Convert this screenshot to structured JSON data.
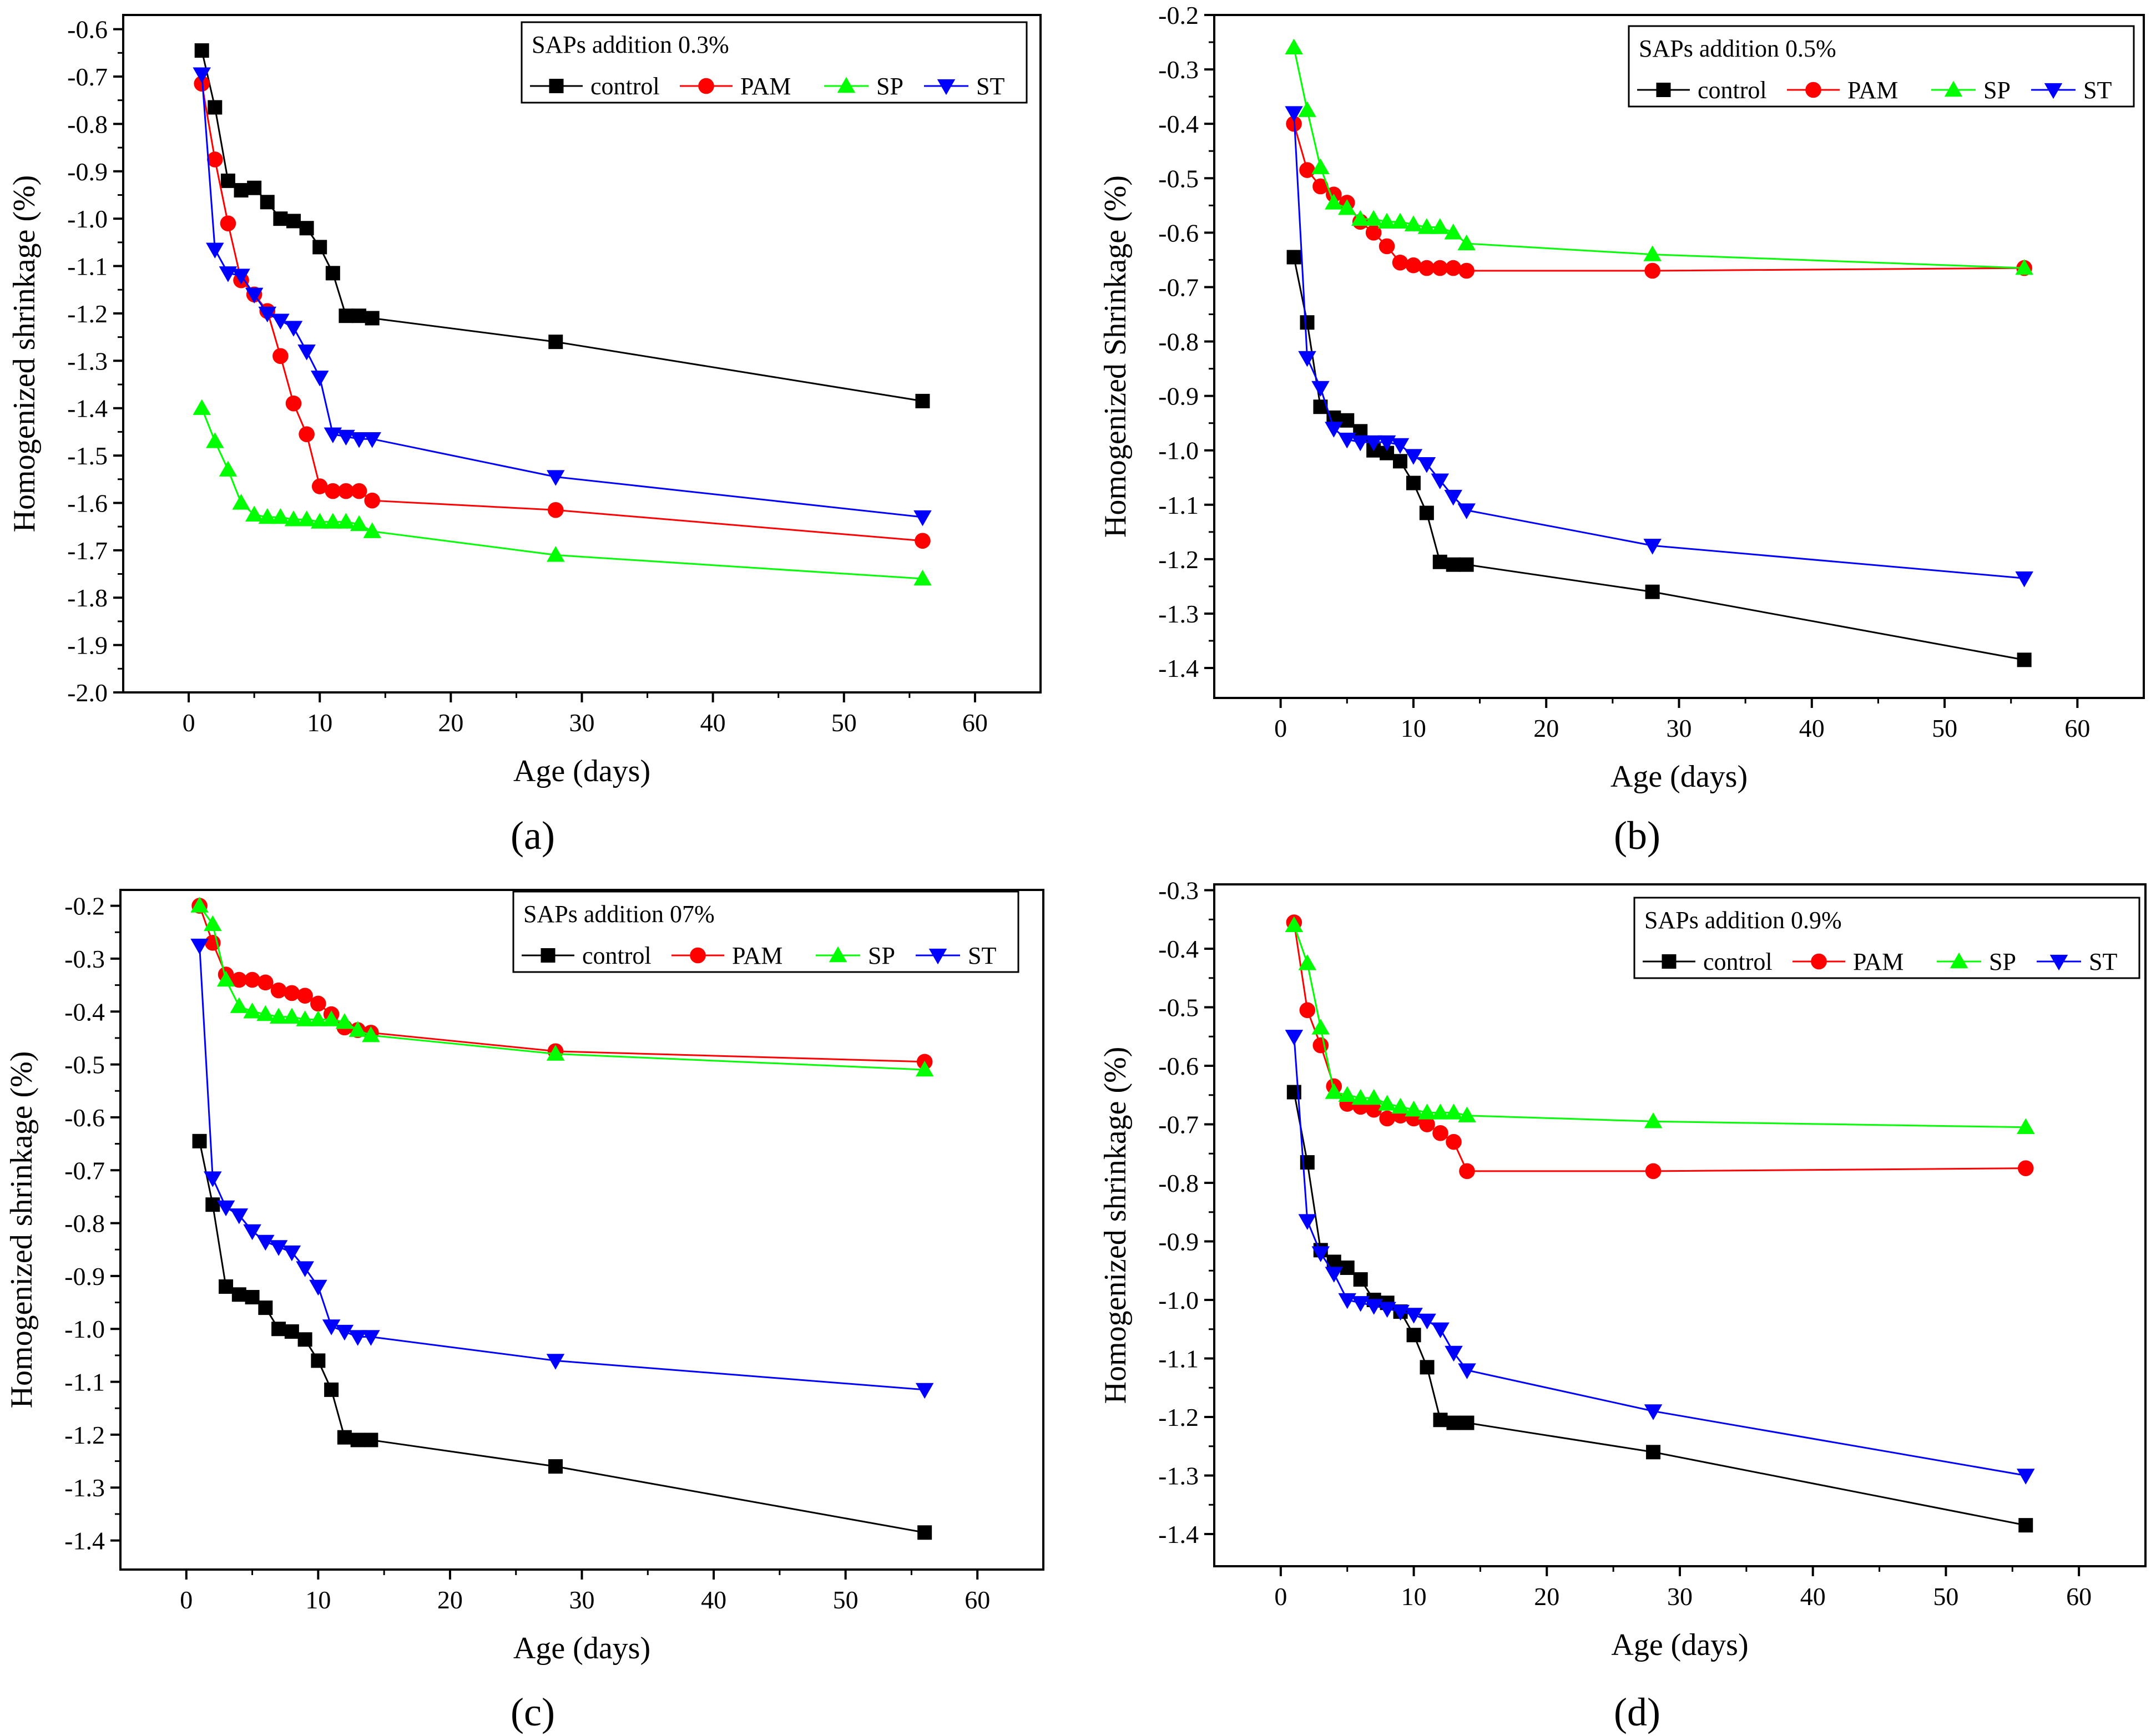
{
  "figure": {
    "series_style": {
      "control": {
        "color": "#000000",
        "marker": "square"
      },
      "PAM": {
        "color": "#ff0000",
        "marker": "circle"
      },
      "SP": {
        "color": "#00ff00",
        "marker": "triangle-up"
      },
      "ST": {
        "color": "#0000ff",
        "marker": "triangle-down"
      }
    }
  },
  "chart_data": [
    {
      "panel": "a",
      "panel_label": "(a)",
      "type": "line",
      "title": "",
      "xlabel": "Age (days)",
      "ylabel": "Homogenized shrinkage (%)",
      "legend_title": "SAPs addition 0.3%",
      "legend_position": "top-right",
      "xlim": [
        -5,
        65
      ],
      "ylim": [
        -2.0,
        -0.57
      ],
      "xticks": [
        0,
        10,
        20,
        30,
        40,
        50,
        60
      ],
      "xtick_labels": [
        "0",
        "10",
        "20",
        "30",
        "40",
        "50",
        "60"
      ],
      "yticks": [
        -2.0,
        -1.9,
        -1.8,
        -1.7,
        -1.6,
        -1.5,
        -1.4,
        -1.3,
        -1.2,
        -1.1,
        -1.0,
        -0.9,
        -0.8,
        -0.7,
        -0.6
      ],
      "ytick_labels": [
        "-2.0",
        "-1.9",
        "-1.8",
        "-1.7",
        "-1.6",
        "-1.5",
        "-1.4",
        "-1.3",
        "-1.2",
        "-1.1",
        "-1.0",
        "-0.9",
        "-0.8",
        "-0.7",
        "-0.6"
      ],
      "series": [
        {
          "name": "control",
          "x": [
            1,
            2,
            3,
            4,
            5,
            6,
            7,
            8,
            9,
            10,
            11,
            12,
            13,
            14,
            28,
            56
          ],
          "y": [
            -0.645,
            -0.765,
            -0.92,
            -0.94,
            -0.935,
            -0.965,
            -1.0,
            -1.005,
            -1.02,
            -1.06,
            -1.115,
            -1.205,
            -1.205,
            -1.21,
            -1.26,
            -1.385
          ]
        },
        {
          "name": "PAM",
          "x": [
            1,
            2,
            3,
            4,
            5,
            6,
            7,
            8,
            9,
            10,
            11,
            12,
            13,
            14,
            28,
            56
          ],
          "y": [
            -0.715,
            -0.875,
            -1.01,
            -1.13,
            -1.16,
            -1.195,
            -1.29,
            -1.39,
            -1.455,
            -1.565,
            -1.575,
            -1.575,
            -1.575,
            -1.595,
            -1.615,
            -1.68
          ]
        },
        {
          "name": "SP",
          "x": [
            1,
            2,
            3,
            4,
            5,
            6,
            7,
            8,
            9,
            10,
            11,
            12,
            13,
            14,
            28,
            56
          ],
          "y": [
            -1.4,
            -1.47,
            -1.53,
            -1.6,
            -1.625,
            -1.63,
            -1.63,
            -1.635,
            -1.635,
            -1.64,
            -1.64,
            -1.64,
            -1.645,
            -1.66,
            -1.71,
            -1.76
          ]
        },
        {
          "name": "ST",
          "x": [
            1,
            2,
            3,
            4,
            5,
            6,
            7,
            8,
            9,
            10,
            11,
            12,
            13,
            14,
            28,
            56
          ],
          "y": [
            -0.695,
            -1.065,
            -1.115,
            -1.12,
            -1.16,
            -1.2,
            -1.215,
            -1.23,
            -1.28,
            -1.335,
            -1.455,
            -1.46,
            -1.465,
            -1.465,
            -1.545,
            -1.63
          ]
        }
      ]
    },
    {
      "panel": "b",
      "panel_label": "(b)",
      "type": "line",
      "title": "",
      "xlabel": "Age (days)",
      "ylabel": "Homogenized Shrinkage (%)",
      "legend_title": "SAPs addition 0.5%",
      "legend_position": "top-right",
      "xlim": [
        -5,
        65
      ],
      "ylim": [
        -1.455,
        -0.2
      ],
      "xticks": [
        0,
        10,
        20,
        30,
        40,
        50,
        60
      ],
      "xtick_labels": [
        "0",
        "10",
        "20",
        "30",
        "40",
        "50",
        "60"
      ],
      "yticks": [
        -1.4,
        -1.3,
        -1.2,
        -1.1,
        -1.0,
        -0.9,
        -0.8,
        -0.7,
        -0.6,
        -0.5,
        -0.4,
        -0.3,
        -0.2
      ],
      "ytick_labels": [
        "-1.4",
        "-1.3",
        "-1.2",
        "-1.1",
        "-1.0",
        "-0.9",
        "-0.8",
        "-0.7",
        "-0.6",
        "-0.5",
        "-0.4",
        "-0.3",
        "-0.2"
      ],
      "series": [
        {
          "name": "control",
          "x": [
            1,
            2,
            3,
            4,
            5,
            6,
            7,
            8,
            9,
            10,
            11,
            12,
            13,
            14,
            28,
            56
          ],
          "y": [
            -0.645,
            -0.765,
            -0.92,
            -0.94,
            -0.945,
            -0.965,
            -1.0,
            -1.005,
            -1.02,
            -1.06,
            -1.115,
            -1.205,
            -1.21,
            -1.21,
            -1.26,
            -1.385
          ]
        },
        {
          "name": "PAM",
          "x": [
            1,
            2,
            3,
            4,
            5,
            6,
            7,
            8,
            9,
            10,
            11,
            12,
            13,
            14,
            28,
            56
          ],
          "y": [
            -0.4,
            -0.485,
            -0.515,
            -0.53,
            -0.545,
            -0.58,
            -0.6,
            -0.625,
            -0.655,
            -0.66,
            -0.665,
            -0.665,
            -0.665,
            -0.67,
            -0.67,
            -0.665
          ]
        },
        {
          "name": "SP",
          "x": [
            1,
            2,
            3,
            4,
            5,
            6,
            7,
            8,
            9,
            10,
            11,
            12,
            13,
            14,
            28,
            56
          ],
          "y": [
            -0.26,
            -0.375,
            -0.48,
            -0.545,
            -0.555,
            -0.575,
            -0.575,
            -0.58,
            -0.58,
            -0.585,
            -0.59,
            -0.59,
            -0.6,
            -0.62,
            -0.64,
            -0.665
          ]
        },
        {
          "name": "ST",
          "x": [
            1,
            2,
            3,
            4,
            5,
            6,
            7,
            8,
            9,
            10,
            11,
            12,
            13,
            14,
            28,
            56
          ],
          "y": [
            -0.38,
            -0.83,
            -0.885,
            -0.96,
            -0.98,
            -0.985,
            -0.985,
            -0.985,
            -0.99,
            -1.01,
            -1.025,
            -1.055,
            -1.085,
            -1.11,
            -1.175,
            -1.235
          ]
        }
      ]
    },
    {
      "panel": "c",
      "panel_label": "(c)",
      "type": "line",
      "title": "",
      "xlabel": "Age (days)",
      "ylabel": "Homogenized shrinkage (%)",
      "legend_title": "SAPs addition 07%",
      "legend_position": "top-right",
      "xlim": [
        -5,
        65
      ],
      "ylim": [
        -1.455,
        -0.17
      ],
      "xticks": [
        0,
        10,
        20,
        30,
        40,
        50,
        60
      ],
      "xtick_labels": [
        "0",
        "10",
        "20",
        "30",
        "40",
        "50",
        "60"
      ],
      "yticks": [
        -1.4,
        -1.3,
        -1.2,
        -1.1,
        -1.0,
        -0.9,
        -0.8,
        -0.7,
        -0.6,
        -0.5,
        -0.4,
        -0.3,
        -0.2
      ],
      "ytick_labels": [
        "-1.4",
        "-1.3",
        "-1.2",
        "-1.1",
        "-1.0",
        "-0.9",
        "-0.8",
        "-0.7",
        "-0.6",
        "-0.5",
        "-0.4",
        "-0.3",
        "-0.2"
      ],
      "series": [
        {
          "name": "control",
          "x": [
            1,
            2,
            3,
            4,
            5,
            6,
            7,
            8,
            9,
            10,
            11,
            12,
            13,
            14,
            28,
            56
          ],
          "y": [
            -0.645,
            -0.765,
            -0.92,
            -0.935,
            -0.94,
            -0.96,
            -1.0,
            -1.005,
            -1.02,
            -1.06,
            -1.115,
            -1.205,
            -1.21,
            -1.21,
            -1.26,
            -1.385
          ]
        },
        {
          "name": "PAM",
          "x": [
            1,
            2,
            3,
            4,
            5,
            6,
            7,
            8,
            9,
            10,
            11,
            12,
            13,
            14,
            28,
            56
          ],
          "y": [
            -0.2,
            -0.27,
            -0.33,
            -0.34,
            -0.34,
            -0.345,
            -0.36,
            -0.365,
            -0.37,
            -0.385,
            -0.405,
            -0.43,
            -0.435,
            -0.44,
            -0.475,
            -0.495
          ]
        },
        {
          "name": "SP",
          "x": [
            1,
            2,
            3,
            4,
            5,
            6,
            7,
            8,
            9,
            10,
            11,
            12,
            13,
            14,
            28,
            56
          ],
          "y": [
            -0.2,
            -0.235,
            -0.34,
            -0.39,
            -0.4,
            -0.405,
            -0.41,
            -0.41,
            -0.415,
            -0.415,
            -0.415,
            -0.42,
            -0.435,
            -0.445,
            -0.48,
            -0.51
          ]
        },
        {
          "name": "ST",
          "x": [
            1,
            2,
            3,
            4,
            5,
            6,
            7,
            8,
            9,
            10,
            11,
            12,
            13,
            14,
            28,
            56
          ],
          "y": [
            -0.275,
            -0.715,
            -0.77,
            -0.785,
            -0.815,
            -0.835,
            -0.845,
            -0.855,
            -0.885,
            -0.92,
            -0.995,
            -1.005,
            -1.015,
            -1.015,
            -1.06,
            -1.115
          ]
        }
      ]
    },
    {
      "panel": "d",
      "panel_label": "(d)",
      "type": "line",
      "title": "",
      "xlabel": "Age (days)",
      "ylabel": "Homogenized shrinkage (%)",
      "legend_title": "SAPs addition 0.9%",
      "legend_position": "top-right",
      "xlim": [
        -5,
        65
      ],
      "ylim": [
        -1.455,
        -0.29
      ],
      "xticks": [
        0,
        10,
        20,
        30,
        40,
        50,
        60
      ],
      "xtick_labels": [
        "0",
        "10",
        "20",
        "30",
        "40",
        "50",
        "60"
      ],
      "yticks": [
        -1.4,
        -1.3,
        -1.2,
        -1.1,
        -1.0,
        -0.9,
        -0.8,
        -0.7,
        -0.6,
        -0.5,
        -0.4,
        -0.3
      ],
      "ytick_labels": [
        "-1.4",
        "-1.3",
        "-1.2",
        "-1.1",
        "-1.0",
        "-0.9",
        "-0.8",
        "-0.7",
        "-0.6",
        "-0.5",
        "-0.4",
        "-0.3"
      ],
      "series": [
        {
          "name": "control",
          "x": [
            1,
            2,
            3,
            4,
            5,
            6,
            7,
            8,
            9,
            10,
            11,
            12,
            13,
            14,
            28,
            56
          ],
          "y": [
            -0.645,
            -0.765,
            -0.915,
            -0.935,
            -0.945,
            -0.965,
            -1.0,
            -1.005,
            -1.02,
            -1.06,
            -1.115,
            -1.205,
            -1.21,
            -1.21,
            -1.26,
            -1.385
          ]
        },
        {
          "name": "PAM",
          "x": [
            1,
            2,
            3,
            4,
            5,
            6,
            7,
            8,
            9,
            10,
            11,
            12,
            13,
            14,
            28,
            56
          ],
          "y": [
            -0.355,
            -0.505,
            -0.565,
            -0.635,
            -0.665,
            -0.67,
            -0.675,
            -0.69,
            -0.685,
            -0.69,
            -0.7,
            -0.715,
            -0.73,
            -0.78,
            -0.78,
            -0.775
          ]
        },
        {
          "name": "SP",
          "x": [
            1,
            2,
            3,
            4,
            5,
            6,
            7,
            8,
            9,
            10,
            11,
            12,
            13,
            14,
            28,
            56
          ],
          "y": [
            -0.36,
            -0.425,
            -0.535,
            -0.645,
            -0.65,
            -0.655,
            -0.655,
            -0.665,
            -0.67,
            -0.675,
            -0.68,
            -0.68,
            -0.68,
            -0.685,
            -0.695,
            -0.705
          ]
        },
        {
          "name": "ST",
          "x": [
            1,
            2,
            3,
            4,
            5,
            6,
            7,
            8,
            9,
            10,
            11,
            12,
            13,
            14,
            28,
            56
          ],
          "y": [
            -0.55,
            -0.865,
            -0.92,
            -0.955,
            -1.0,
            -1.005,
            -1.01,
            -1.015,
            -1.02,
            -1.025,
            -1.035,
            -1.05,
            -1.09,
            -1.12,
            -1.19,
            -1.3
          ]
        }
      ]
    }
  ]
}
